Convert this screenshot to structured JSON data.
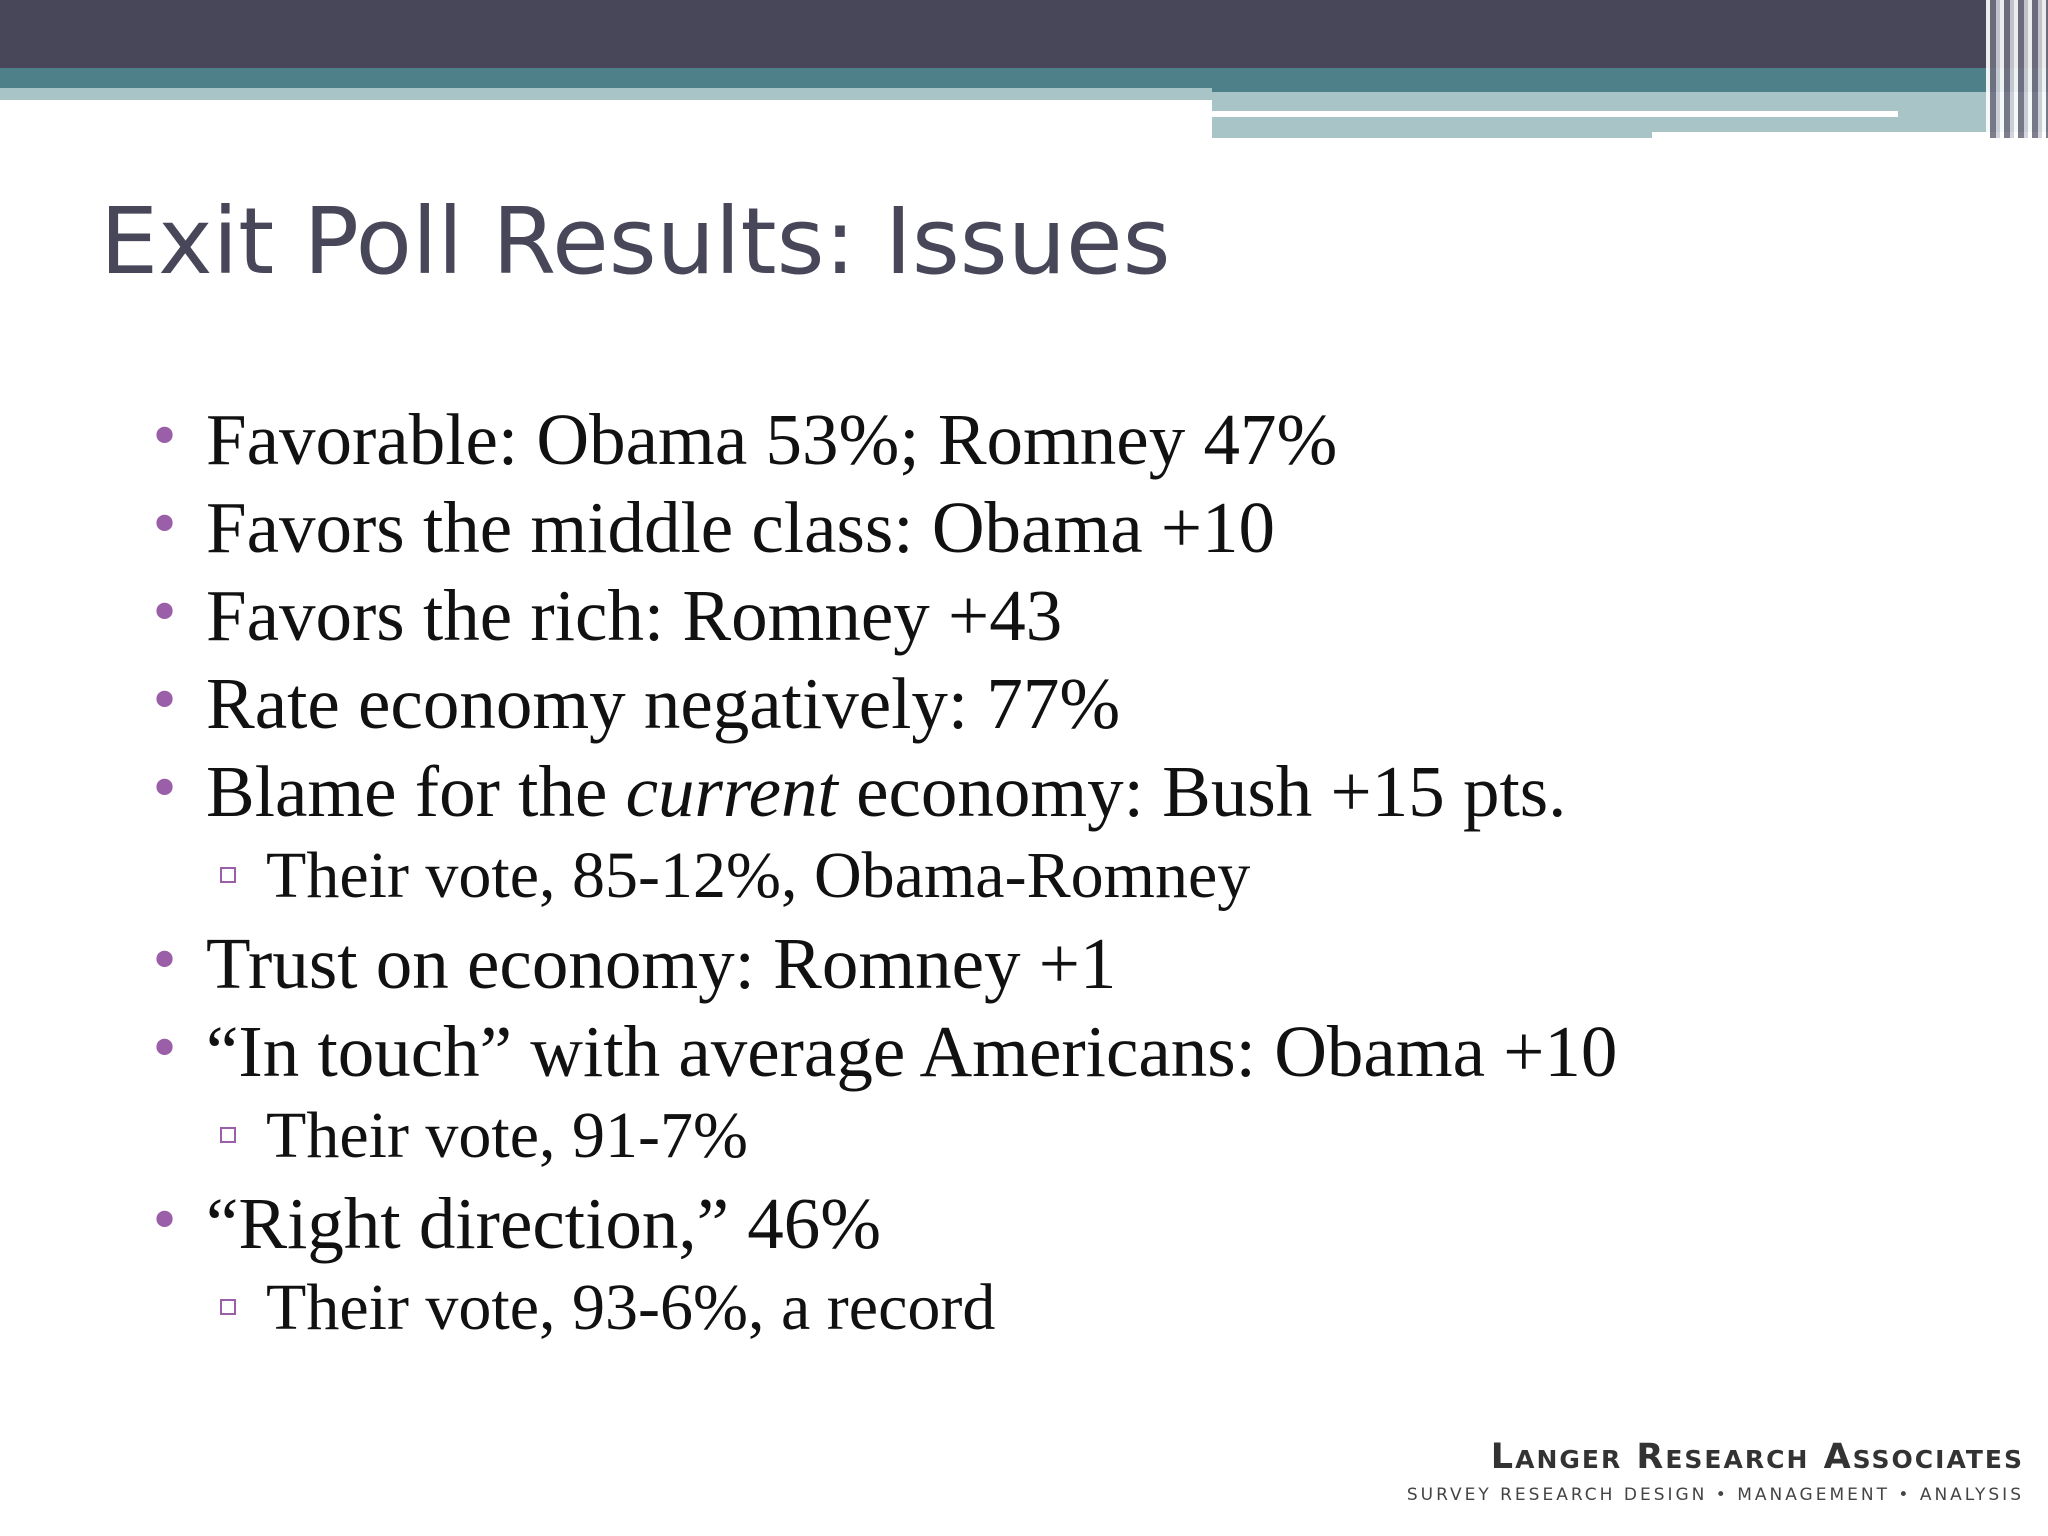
{
  "slide": {
    "title": "Exit Poll Results: Issues",
    "bullets": [
      {
        "text": "Favorable: Obama 53%; Romney 47%"
      },
      {
        "text": "Favors the middle class: Obama +10"
      },
      {
        "text": "Favors the rich: Romney +43"
      },
      {
        "text": "Rate economy negatively: 77%"
      },
      {
        "text_before": "Blame for the ",
        "text_emphasis": "current",
        "text_after": " economy: Bush +15 pts.",
        "sub": "Their vote, 85-12%, Obama-Romney"
      },
      {
        "text": "Trust on economy: Romney +1"
      },
      {
        "text": "“In touch” with average Americans: Obama +10",
        "sub": "Their vote, 91-7%"
      },
      {
        "text": "“Right direction,” 46%",
        "sub": "Their vote, 93-6%, a record"
      }
    ]
  },
  "logo": {
    "name": "Langer Research Associates",
    "tagline": "SURVEY RESEARCH DESIGN • MANAGEMENT • ANALYSIS"
  },
  "colors": {
    "title": "#474759",
    "bullet": "#9b5ea8",
    "header_dark": "#474759",
    "header_teal": "#4d8088",
    "header_light": "#a9c4c7"
  }
}
